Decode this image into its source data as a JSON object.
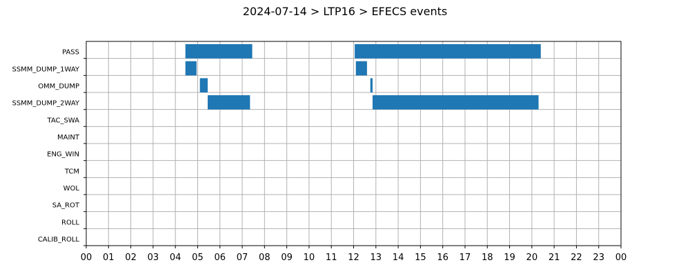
{
  "chart_data": {
    "type": "bar",
    "orientation": "horizontal-timeline",
    "title": "2024-07-14 > LTP16 > EFECS events",
    "xlabel": "",
    "ylabel": "",
    "xlim": [
      0,
      24
    ],
    "x_ticks": [
      "00",
      "01",
      "02",
      "03",
      "04",
      "05",
      "06",
      "07",
      "08",
      "09",
      "10",
      "11",
      "12",
      "13",
      "14",
      "15",
      "16",
      "17",
      "18",
      "19",
      "20",
      "21",
      "22",
      "23",
      "00"
    ],
    "categories": [
      "PASS",
      "SSMM_DUMP_1WAY",
      "OMM_DUMP",
      "SSMM_DUMP_2WAY",
      "TAC_SWA",
      "MAINT",
      "ENG_WIN",
      "TCM",
      "WOL",
      "SA_ROT",
      "ROLL",
      "CALIB_ROLL"
    ],
    "grid": true,
    "bar_color": "#1f77b4",
    "events": [
      {
        "category": "PASS",
        "start": 4.45,
        "end": 7.45
      },
      {
        "category": "PASS",
        "start": 12.05,
        "end": 20.4
      },
      {
        "category": "SSMM_DUMP_1WAY",
        "start": 4.45,
        "end": 4.95
      },
      {
        "category": "SSMM_DUMP_1WAY",
        "start": 12.1,
        "end": 12.6
      },
      {
        "category": "OMM_DUMP",
        "start": 5.1,
        "end": 5.45
      },
      {
        "category": "OMM_DUMP",
        "start": 12.75,
        "end": 12.85
      },
      {
        "category": "SSMM_DUMP_2WAY",
        "start": 5.45,
        "end": 7.35
      },
      {
        "category": "SSMM_DUMP_2WAY",
        "start": 12.85,
        "end": 20.3
      }
    ]
  }
}
